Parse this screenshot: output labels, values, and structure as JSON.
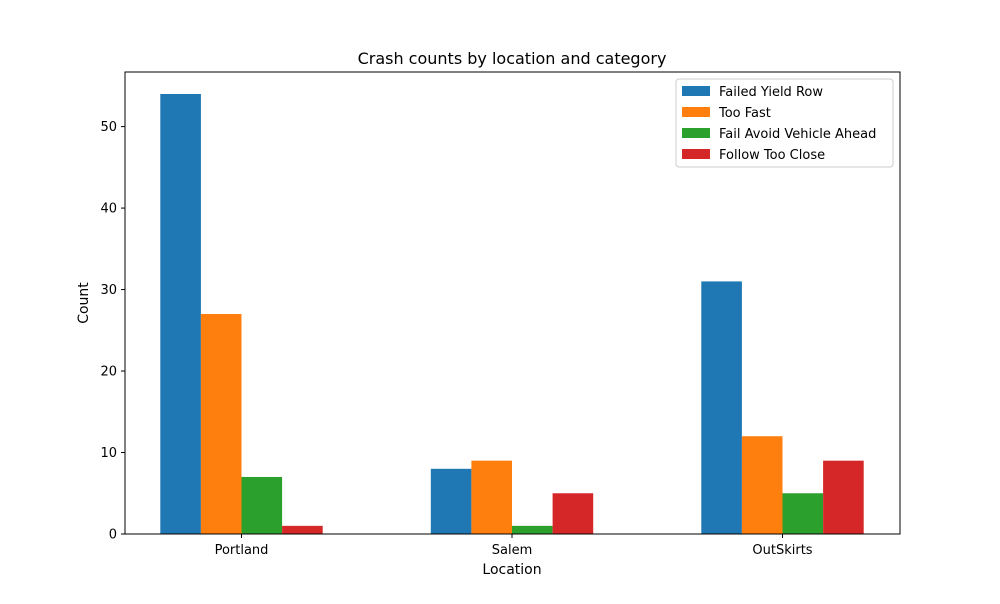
{
  "chart_data": {
    "type": "bar",
    "title": "Crash counts by location and category",
    "xlabel": "Location",
    "ylabel": "Count",
    "categories": [
      "Portland",
      "Salem",
      "OutSkirts"
    ],
    "series": [
      {
        "name": "Failed Yield Row",
        "color": "#1f77b4",
        "values": [
          54,
          8,
          31
        ]
      },
      {
        "name": "Too Fast",
        "color": "#ff7f0e",
        "values": [
          27,
          9,
          12
        ]
      },
      {
        "name": "Fail Avoid Vehicle Ahead",
        "color": "#2ca02c",
        "values": [
          7,
          1,
          5
        ]
      },
      {
        "name": "Follow Too Close",
        "color": "#d62728",
        "values": [
          1,
          5,
          9
        ]
      }
    ],
    "ylim": [
      0,
      56.7
    ],
    "yticks": [
      0,
      10,
      20,
      30,
      40,
      50
    ],
    "grid": false,
    "legend_position": "top-right"
  }
}
